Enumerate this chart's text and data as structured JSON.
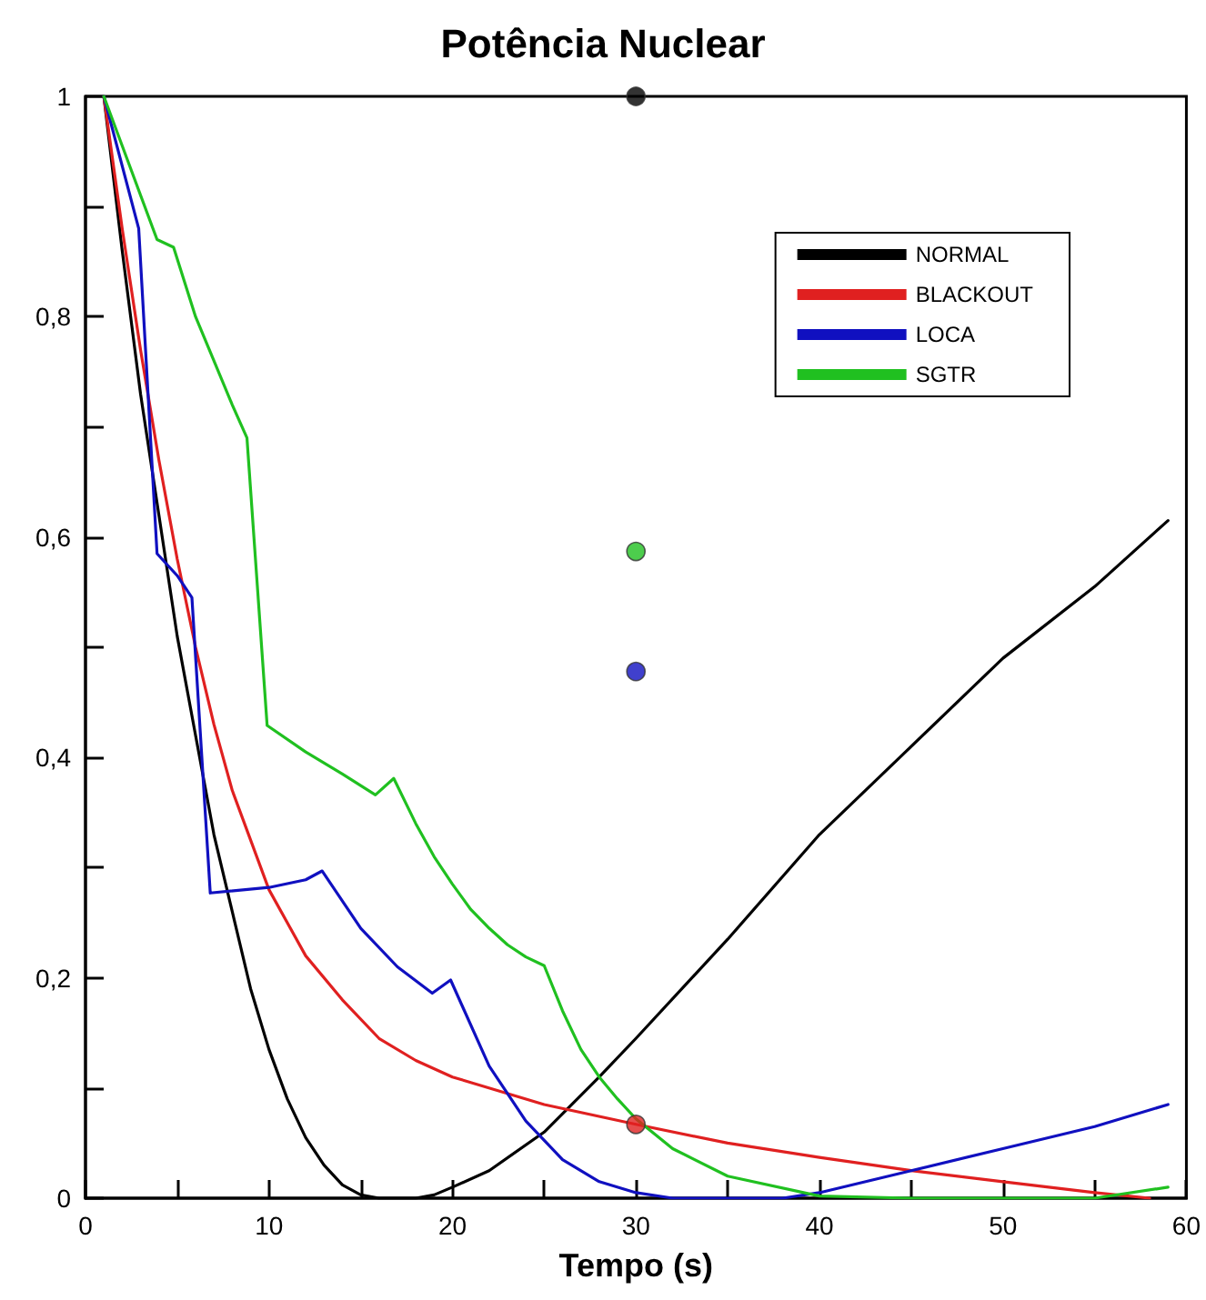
{
  "chart_data": {
    "type": "line",
    "title": "Potência Nuclear",
    "xlabel": "Tempo (s)",
    "xlim": [
      0,
      60
    ],
    "xticks": [
      0,
      {
        "value": 5,
        "label": null
      },
      10,
      {
        "value": 15,
        "label": null
      },
      20,
      {
        "value": 25,
        "label": null
      },
      30,
      {
        "value": 35,
        "label": null
      },
      40,
      {
        "value": 45,
        "label": null
      },
      50,
      {
        "value": 55,
        "label": null
      },
      60
    ],
    "ylim": [
      0,
      1
    ],
    "yticks": [
      0,
      {
        "value": 0.1,
        "label": null
      },
      {
        "value": 0.2,
        "label": "0,2"
      },
      {
        "value": 0.3,
        "label": null
      },
      {
        "value": 0.4,
        "label": "0,4"
      },
      {
        "value": 0.5,
        "label": null
      },
      {
        "value": 0.6,
        "label": "0,6"
      },
      {
        "value": 0.7,
        "label": null
      },
      {
        "value": 0.8,
        "label": "0,8"
      },
      {
        "value": 0.9,
        "label": null
      },
      1
    ],
    "grid": false,
    "legend": "top right",
    "marker": "none",
    "line_style": "solid",
    "series": [
      {
        "name": "NORMAL",
        "color": "#000000",
        "x": [
          1,
          2,
          3,
          4,
          5,
          6,
          7,
          8,
          9,
          10,
          11,
          12,
          13,
          14,
          15,
          16,
          18,
          19,
          20,
          22,
          25,
          28,
          30,
          35,
          40,
          45,
          50,
          55,
          59
        ],
        "values": [
          1,
          0.86,
          0.73,
          0.62,
          0.51,
          0.42,
          0.33,
          0.26,
          0.19,
          0.135,
          0.09,
          0.055,
          0.03,
          0.012,
          0.003,
          0,
          0,
          0.003,
          0.01,
          0.025,
          0.06,
          0.11,
          0.145,
          0.235,
          0.33,
          0.41,
          0.49,
          0.555,
          0.615
        ]
      },
      {
        "name": "BLACKOUT",
        "color": "#e02020",
        "x": [
          1,
          2,
          3,
          4,
          5,
          6,
          7,
          8,
          10,
          12,
          14,
          16,
          18,
          20,
          25,
          30,
          35,
          40,
          45,
          50,
          55,
          58
        ],
        "values": [
          1,
          0.88,
          0.77,
          0.67,
          0.58,
          0.5,
          0.43,
          0.37,
          0.28,
          0.22,
          0.18,
          0.145,
          0.125,
          0.11,
          0.085,
          0.067,
          0.05,
          0.037,
          0.025,
          0.015,
          0.005,
          0
        ]
      },
      {
        "name": "LOCA",
        "color": "#1010c0",
        "x": [
          1,
          2.9,
          3.9,
          5,
          5.8,
          6.8,
          10,
          12,
          12.9,
          15,
          17,
          18.9,
          19.9,
          22,
          24,
          26,
          28,
          30,
          32,
          38,
          40,
          45,
          50,
          55,
          59
        ],
        "values": [
          1,
          0.88,
          0.585,
          0.565,
          0.545,
          0.277,
          0.282,
          0.289,
          0.297,
          0.245,
          0.21,
          0.186,
          0.198,
          0.12,
          0.07,
          0.035,
          0.015,
          0.005,
          0,
          0,
          0.005,
          0.025,
          0.045,
          0.065,
          0.085
        ]
      },
      {
        "name": "SGTR",
        "color": "#20c020",
        "x": [
          1,
          3.9,
          4.8,
          6,
          7,
          8,
          8.8,
          9.9,
          12,
          14,
          15.8,
          16.8,
          18,
          19,
          20,
          21,
          22,
          23,
          24,
          25,
          26,
          27,
          28,
          29,
          30,
          32,
          35,
          40,
          45,
          55,
          59
        ],
        "values": [
          1,
          0.87,
          0.863,
          0.8,
          0.76,
          0.72,
          0.69,
          0.429,
          0.405,
          0.385,
          0.366,
          0.381,
          0.34,
          0.31,
          0.285,
          0.262,
          0.245,
          0.23,
          0.219,
          0.211,
          0.17,
          0.135,
          0.11,
          0.09,
          0.072,
          0.045,
          0.02,
          0.002,
          0,
          0,
          0.01
        ]
      },
      {
        "type": "scatter",
        "marker": "circle",
        "color": "#000000",
        "x": [
          30
        ],
        "values": [
          1
        ]
      },
      {
        "type": "scatter",
        "marker": "circle",
        "color": "#20c020",
        "x": [
          30
        ],
        "values": [
          0.587
        ]
      },
      {
        "type": "scatter",
        "marker": "circle",
        "color": "#1010c0",
        "x": [
          30
        ],
        "values": [
          0.478
        ]
      },
      {
        "type": "scatter",
        "marker": "circle",
        "color": "#e02020",
        "x": [
          30
        ],
        "values": [
          0.067
        ]
      }
    ]
  }
}
